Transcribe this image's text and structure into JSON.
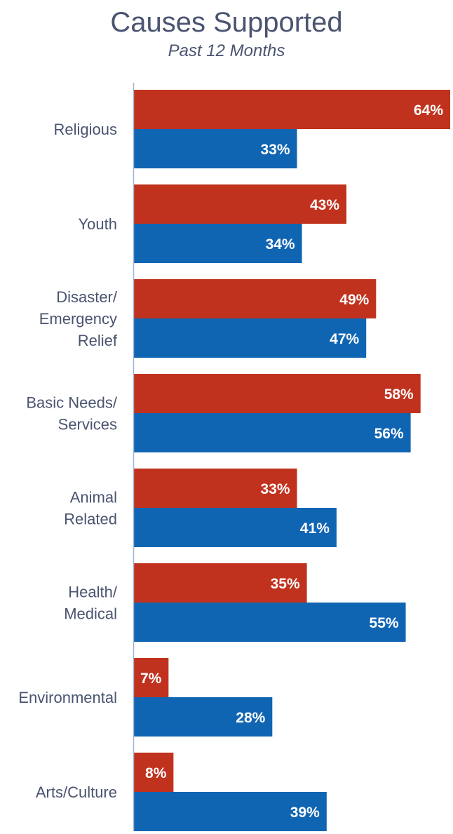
{
  "chart_data": {
    "type": "bar",
    "orientation": "horizontal",
    "title": "Causes Supported",
    "subtitle": "Past 12 Months",
    "categories": [
      [
        "Religious"
      ],
      [
        "Youth"
      ],
      [
        "Disaster/",
        "Emergency",
        "Relief"
      ],
      [
        "Basic Needs/",
        "Services"
      ],
      [
        "Animal",
        "Related"
      ],
      [
        "Health/",
        "Medical"
      ],
      [
        "Environmental"
      ],
      [
        "Arts/Culture"
      ]
    ],
    "series": [
      {
        "color": "#c1321e",
        "values": [
          64,
          43,
          49,
          58,
          33,
          35,
          7,
          8
        ],
        "labels": [
          "64%",
          "43%",
          "49%",
          "58%",
          "33%",
          "35%",
          "7%",
          "8%"
        ]
      },
      {
        "color": "#1065b3",
        "values": [
          33,
          34,
          47,
          56,
          41,
          55,
          28,
          39
        ],
        "labels": [
          "33%",
          "34%",
          "47%",
          "56%",
          "41%",
          "55%",
          "28%",
          "39%"
        ]
      }
    ],
    "xlim": [
      0,
      64
    ],
    "grid": false,
    "legend": "none",
    "axis_color": "#9fb4cf",
    "label_color": "#4a5470"
  }
}
